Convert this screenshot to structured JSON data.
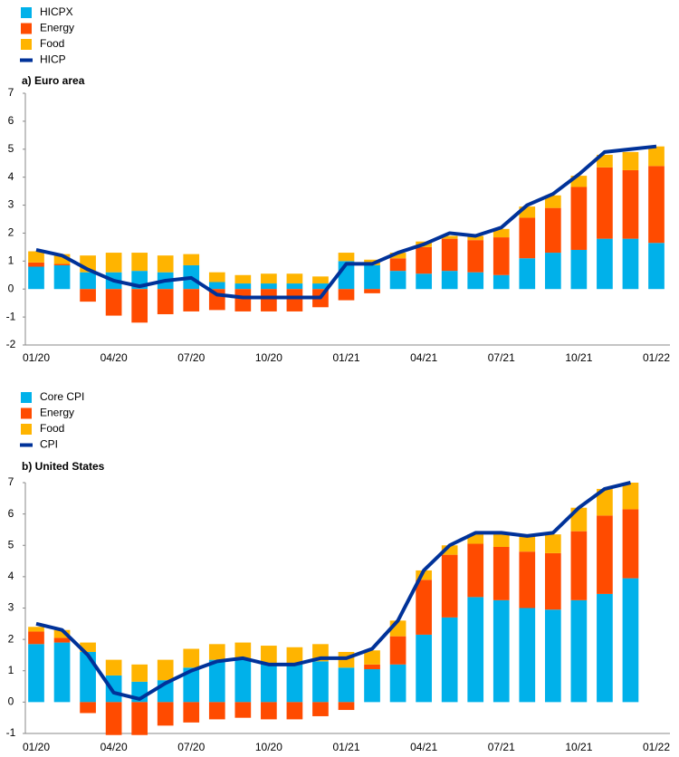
{
  "chart_data": [
    {
      "type": "bar",
      "stacked": true,
      "title": "a) Euro area",
      "categories": [
        "01/20",
        null,
        null,
        "04/20",
        null,
        null,
        "07/20",
        null,
        null,
        "10/20",
        null,
        null,
        "01/21",
        null,
        null,
        "04/21",
        null,
        null,
        "07/21",
        null,
        null,
        "10/21",
        null,
        null,
        "01/22"
      ],
      "series": [
        {
          "name": "HICPX",
          "color": "#00b1ea",
          "values": [
            0.8,
            0.85,
            0.6,
            0.6,
            0.65,
            0.6,
            0.85,
            0.25,
            0.2,
            0.2,
            0.2,
            0.2,
            1.0,
            0.85,
            0.65,
            0.55,
            0.65,
            0.6,
            0.5,
            1.1,
            1.3,
            1.4,
            1.8,
            1.8,
            1.65
          ]
        },
        {
          "name": "Energy",
          "color": "#ff4b00",
          "values": [
            0.15,
            0.05,
            -0.45,
            -0.95,
            -1.2,
            -0.9,
            -0.8,
            -0.75,
            -0.8,
            -0.8,
            -0.8,
            -0.65,
            -0.4,
            -0.15,
            0.45,
            0.95,
            1.15,
            1.15,
            1.35,
            1.45,
            1.6,
            2.25,
            2.55,
            2.45,
            2.75
          ]
        },
        {
          "name": "Food",
          "color": "#ffb400",
          "values": [
            0.4,
            0.35,
            0.6,
            0.7,
            0.65,
            0.6,
            0.4,
            0.35,
            0.3,
            0.35,
            0.35,
            0.25,
            0.3,
            0.2,
            0.2,
            0.2,
            0.1,
            0.15,
            0.3,
            0.4,
            0.45,
            0.4,
            0.45,
            0.65,
            0.7
          ]
        },
        {
          "name": "HICP",
          "color": "#003299",
          "type": "line",
          "values": [
            1.4,
            1.2,
            0.7,
            0.3,
            0.1,
            0.3,
            0.4,
            -0.2,
            -0.3,
            -0.3,
            -0.3,
            -0.3,
            0.9,
            0.9,
            1.3,
            1.6,
            2.0,
            1.9,
            2.2,
            3.0,
            3.4,
            4.1,
            4.9,
            5.0,
            5.1
          ]
        }
      ],
      "ylim": [
        -2,
        7
      ],
      "yticks": [
        -2,
        -1,
        0,
        1,
        2,
        3,
        4,
        5,
        6,
        7
      ],
      "grid": false
    },
    {
      "type": "bar",
      "stacked": true,
      "title": "b) United States",
      "categories": [
        "01/20",
        null,
        null,
        "04/20",
        null,
        null,
        "07/20",
        null,
        null,
        "10/20",
        null,
        null,
        "01/21",
        null,
        null,
        "04/21",
        null,
        null,
        "07/21",
        null,
        null,
        "10/21",
        null,
        null,
        "01/22"
      ],
      "series": [
        {
          "name": "Core CPI",
          "color": "#00b1ea",
          "values": [
            1.85,
            1.9,
            1.6,
            0.85,
            0.65,
            0.7,
            1.1,
            1.35,
            1.4,
            1.25,
            1.2,
            1.3,
            1.1,
            1.05,
            1.2,
            2.15,
            2.7,
            3.35,
            3.25,
            3.0,
            2.95,
            3.25,
            3.45,
            3.95,
            null
          ]
        },
        {
          "name": "Energy",
          "color": "#ff4b00",
          "values": [
            0.4,
            0.15,
            -0.35,
            -1.05,
            -1.05,
            -0.75,
            -0.65,
            -0.55,
            -0.5,
            -0.55,
            -0.55,
            -0.45,
            -0.25,
            0.15,
            0.9,
            1.75,
            2.0,
            1.7,
            1.7,
            1.8,
            1.8,
            2.2,
            2.5,
            2.2,
            null
          ]
        },
        {
          "name": "Food",
          "color": "#ffb400",
          "values": [
            0.15,
            0.25,
            0.3,
            0.5,
            0.55,
            0.65,
            0.6,
            0.5,
            0.5,
            0.55,
            0.55,
            0.55,
            0.5,
            0.45,
            0.5,
            0.3,
            0.3,
            0.3,
            0.45,
            0.55,
            0.6,
            0.75,
            0.85,
            0.85,
            null
          ]
        },
        {
          "name": "CPI",
          "color": "#003299",
          "type": "line",
          "values": [
            2.5,
            2.3,
            1.5,
            0.3,
            0.1,
            0.6,
            1.0,
            1.3,
            1.4,
            1.2,
            1.2,
            1.4,
            1.4,
            1.7,
            2.6,
            4.2,
            5.0,
            5.4,
            5.4,
            5.3,
            5.4,
            6.2,
            6.8,
            7.0,
            null
          ]
        }
      ],
      "ylim": [
        -1,
        7
      ],
      "yticks": [
        -1,
        0,
        1,
        2,
        3,
        4,
        5,
        6,
        7
      ],
      "grid": false
    }
  ]
}
